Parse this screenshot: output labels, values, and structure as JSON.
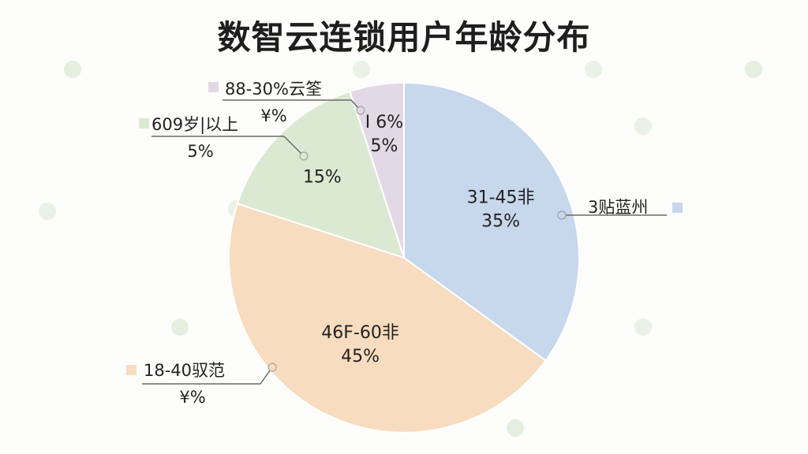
{
  "chart_data": {
    "type": "pie",
    "title": "数智云连锁用户年龄分布",
    "slices": [
      {
        "inside_label": "31-45非",
        "inside_value": "35%",
        "value": 35,
        "color": "#c7d7ec",
        "legend_label": "3贴蓝州",
        "legend_value": "",
        "legend_position": "right"
      },
      {
        "inside_label": "46F-60非",
        "inside_value": "45%",
        "value": 45,
        "color": "#f8dcc0",
        "legend_label": "18-40驭范",
        "legend_value": "¥%",
        "legend_position": "bottom-left"
      },
      {
        "inside_label": "",
        "inside_value": "15%",
        "value": 15,
        "color": "#dbe9d2",
        "legend_label": "609岁|以上",
        "legend_value": "5%",
        "legend_position": "left"
      },
      {
        "inside_label": "I 6%",
        "inside_value": "5%",
        "value": 5,
        "color": "#e3d9e6",
        "legend_label": "88-30%云筌",
        "legend_value": "¥%",
        "legend_position": "top-left"
      }
    ],
    "legend": "outside, with leader lines",
    "grid": false
  },
  "colors": {
    "title": "#1e1e1e",
    "text": "#222222",
    "leader": "#6b6b6b",
    "slice_border": "#ffffff"
  }
}
